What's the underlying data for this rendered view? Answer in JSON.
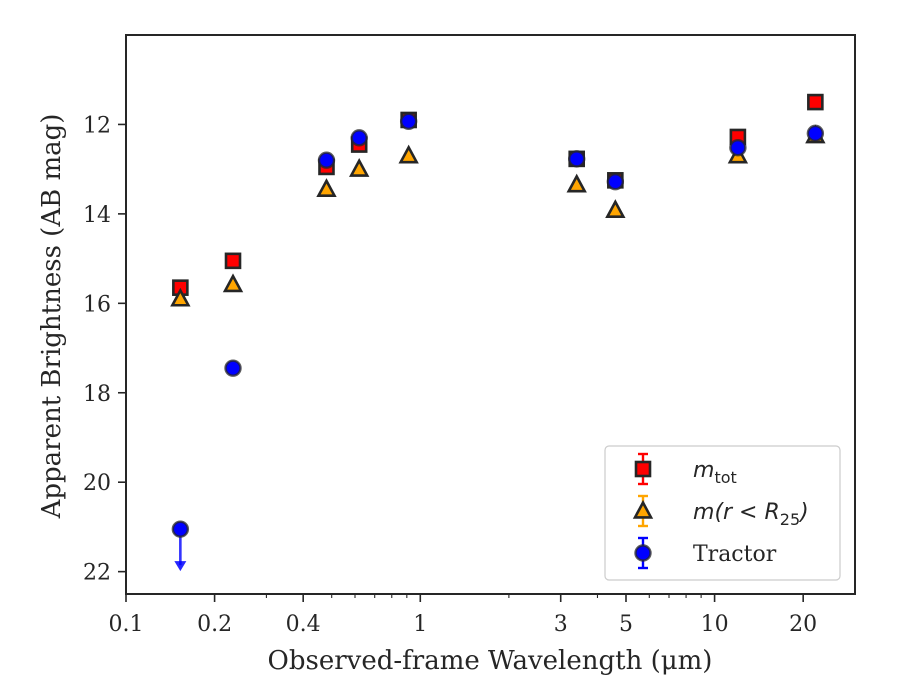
{
  "chart_data": {
    "type": "scatter",
    "xlabel": "Observed-frame Wavelength (μm)",
    "ylabel": "Apparent Brightness (AB mag)",
    "xscale": "log",
    "xlim": [
      0.1,
      30
    ],
    "ylim": [
      22.5,
      10
    ],
    "y_inverted": true,
    "xticks": [
      {
        "value": 0.1,
        "label": "0.1"
      },
      {
        "value": 0.2,
        "label": "0.2"
      },
      {
        "value": 0.4,
        "label": "0.4"
      },
      {
        "value": 1,
        "label": "1"
      },
      {
        "value": 3,
        "label": "3"
      },
      {
        "value": 5,
        "label": "5"
      },
      {
        "value": 10,
        "label": "10"
      },
      {
        "value": 20,
        "label": "20"
      }
    ],
    "yticks": [
      {
        "value": 12,
        "label": "12"
      },
      {
        "value": 14,
        "label": "14"
      },
      {
        "value": 16,
        "label": "16"
      },
      {
        "value": 18,
        "label": "18"
      },
      {
        "value": 20,
        "label": "20"
      },
      {
        "value": 22,
        "label": "22"
      }
    ],
    "legend_position": "bottom-right",
    "series": [
      {
        "name": "m_tot",
        "marker": "square",
        "color": "#ff0000",
        "edge": "#262626",
        "points": [
          {
            "x": 0.153,
            "y": 15.65
          },
          {
            "x": 0.231,
            "y": 15.05
          },
          {
            "x": 0.48,
            "y": 12.95
          },
          {
            "x": 0.62,
            "y": 12.45
          },
          {
            "x": 0.913,
            "y": 11.9
          },
          {
            "x": 3.4,
            "y": 12.77
          },
          {
            "x": 4.6,
            "y": 13.25
          },
          {
            "x": 12.0,
            "y": 12.28
          },
          {
            "x": 22.0,
            "y": 11.5
          }
        ]
      },
      {
        "name": "m(r < R_25)",
        "marker": "triangle",
        "color": "#ffa500",
        "edge": "#262626",
        "points": [
          {
            "x": 0.153,
            "y": 15.9
          },
          {
            "x": 0.231,
            "y": 15.58
          },
          {
            "x": 0.48,
            "y": 13.45
          },
          {
            "x": 0.62,
            "y": 13.0
          },
          {
            "x": 0.913,
            "y": 12.7
          },
          {
            "x": 3.4,
            "y": 13.35
          },
          {
            "x": 4.6,
            "y": 13.92
          },
          {
            "x": 12.0,
            "y": 12.7
          },
          {
            "x": 22.0,
            "y": 12.25
          }
        ]
      },
      {
        "name": "Tractor",
        "marker": "circle",
        "color": "#0000ff",
        "edge": "#262626",
        "points": [
          {
            "x": 0.153,
            "y": 21.05,
            "upper_limit": true
          },
          {
            "x": 0.231,
            "y": 17.45
          },
          {
            "x": 0.48,
            "y": 12.8
          },
          {
            "x": 0.62,
            "y": 12.3
          },
          {
            "x": 0.913,
            "y": 11.93
          },
          {
            "x": 3.4,
            "y": 12.77
          },
          {
            "x": 4.6,
            "y": 13.28
          },
          {
            "x": 12.0,
            "y": 12.52
          },
          {
            "x": 22.0,
            "y": 12.2
          }
        ]
      }
    ],
    "legend": {
      "mtot": {
        "base": "m",
        "sub": "tot"
      },
      "mr": {
        "prefix": "m",
        "middle": "(r < R",
        "sub": "25",
        "suffix": ")"
      },
      "tractor": "Tractor"
    }
  }
}
